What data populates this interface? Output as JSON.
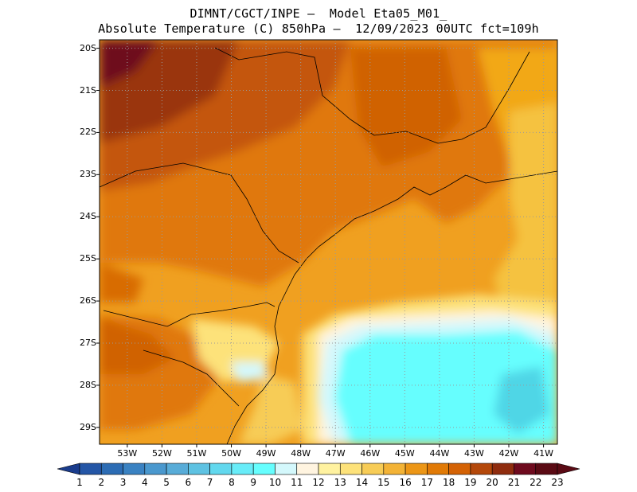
{
  "header": {
    "line1": "DIMNT/CGCT/INPE —  Model Eta05_M01_",
    "line2": "Absolute Temperature (C) 850hPa —  12/09/2023 00UTC fct=109h"
  },
  "map": {
    "lat_labels": [
      "20S",
      "21S",
      "22S",
      "23S",
      "24S",
      "25S",
      "26S",
      "27S",
      "28S",
      "29S"
    ],
    "lon_labels": [
      "53W",
      "52W",
      "51W",
      "50W",
      "49W",
      "48W",
      "47W",
      "46W",
      "45W",
      "44W",
      "43W",
      "42W",
      "41W"
    ],
    "lat_range": [
      -29.4,
      -19.8
    ],
    "lon_range": [
      -53.8,
      -40.6
    ],
    "grid": "dotted"
  },
  "colorbar": {
    "labels": [
      "1",
      "2",
      "3",
      "4",
      "5",
      "6",
      "7",
      "8",
      "9",
      "10",
      "11",
      "12",
      "13",
      "14",
      "15",
      "16",
      "17",
      "18",
      "19",
      "20",
      "21",
      "22",
      "23"
    ],
    "colors": [
      "#1a3c8c",
      "#2456a6",
      "#2c6cb4",
      "#3a82c2",
      "#4a98ce",
      "#58acd8",
      "#5ec2e2",
      "#62d8ee",
      "#68ecf8",
      "#66fefe",
      "#d4f8fc",
      "#fff4e0",
      "#fff2a0",
      "#fde27a",
      "#f7cc56",
      "#f3b336",
      "#ec9616",
      "#e17a06",
      "#d46204",
      "#b4480a",
      "#8f2c0e",
      "#6e0a1e",
      "#5a0a14"
    ],
    "extend": "both"
  }
}
